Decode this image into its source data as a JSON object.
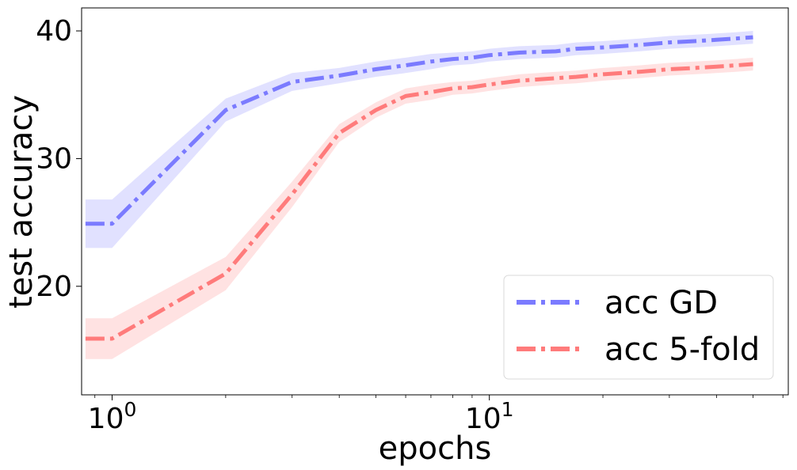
{
  "chart_data": {
    "type": "line",
    "xlabel": "epochs",
    "ylabel": "test accuracy",
    "x_scale": "log",
    "xlim": [
      0.83,
      62
    ],
    "ylim": [
      11.5,
      41.8
    ],
    "x_ticks": [
      {
        "value": 1,
        "base": "10",
        "exp": "0"
      },
      {
        "value": 10,
        "base": "10",
        "exp": "1"
      }
    ],
    "y_ticks": [
      {
        "value": 20,
        "label": "20"
      },
      {
        "value": 30,
        "label": "30"
      },
      {
        "value": 40,
        "label": "40"
      }
    ],
    "grid": false,
    "legend_position": "lower right",
    "series": [
      {
        "name": "acc GD",
        "color": "#7b7bff",
        "band_color": "#c8c8ff",
        "x": [
          0.85,
          1,
          2,
          3,
          4,
          5,
          6,
          7,
          8,
          9,
          10,
          12,
          15,
          17,
          20,
          25,
          30,
          35,
          40,
          45,
          50
        ],
        "y": [
          24.9,
          24.9,
          33.8,
          36.0,
          36.5,
          37.0,
          37.3,
          37.6,
          37.8,
          37.9,
          38.1,
          38.3,
          38.4,
          38.6,
          38.7,
          38.9,
          39.1,
          39.2,
          39.3,
          39.4,
          39.5
        ],
        "err": [
          1.9,
          1.9,
          0.9,
          0.7,
          0.6,
          0.6,
          0.6,
          0.6,
          0.5,
          0.5,
          0.5,
          0.5,
          0.5,
          0.5,
          0.5,
          0.5,
          0.5,
          0.5,
          0.5,
          0.5,
          0.5
        ]
      },
      {
        "name": "acc 5-fold",
        "color": "#ff7b7b",
        "band_color": "#ffcaca",
        "x": [
          0.85,
          1,
          2,
          3,
          4,
          5,
          6,
          7,
          8,
          9,
          10,
          12,
          15,
          17,
          20,
          25,
          30,
          35,
          40,
          45,
          50
        ],
        "y": [
          15.9,
          15.9,
          21.0,
          27.2,
          32.0,
          33.8,
          34.9,
          35.2,
          35.5,
          35.6,
          35.8,
          36.1,
          36.3,
          36.4,
          36.6,
          36.8,
          37.0,
          37.1,
          37.2,
          37.3,
          37.4
        ],
        "err": [
          1.6,
          1.6,
          1.3,
          1.0,
          0.7,
          0.6,
          0.6,
          0.6,
          0.5,
          0.5,
          0.5,
          0.5,
          0.5,
          0.5,
          0.5,
          0.5,
          0.5,
          0.5,
          0.5,
          0.5,
          0.5
        ]
      }
    ]
  }
}
